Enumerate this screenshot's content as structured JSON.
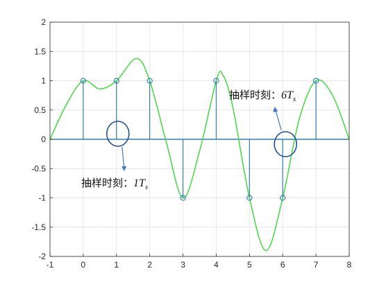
{
  "chart_data": {
    "type": "line",
    "xlim": [
      -1,
      8
    ],
    "ylim": [
      -2,
      2
    ],
    "x_ticks": [
      "-1",
      "0",
      "1",
      "2",
      "3",
      "4",
      "5",
      "6",
      "7",
      "8"
    ],
    "y_ticks": [
      "2",
      "1.5",
      "1",
      "0.5",
      "0",
      "-0.5",
      "-1",
      "-1.5",
      "-2"
    ],
    "grid": true,
    "series": [
      {
        "kind": "continuous-curve",
        "color": "#4cd94c",
        "x": [
          -1,
          -0.5,
          0,
          0.5,
          1,
          1.6,
          2,
          2.5,
          3,
          3.5,
          4,
          4.2,
          4.5,
          5,
          5.5,
          6,
          6.5,
          7,
          7.5,
          8
        ],
        "y": [
          0,
          0.6,
          1,
          0.86,
          1,
          1.38,
          1,
          -0.05,
          -1,
          -0.2,
          1,
          1.1,
          0.55,
          -1,
          -1.9,
          -1,
          0.35,
          1,
          0.75,
          0
        ]
      },
      {
        "kind": "stem",
        "color": "#2e7fa8",
        "x": [
          0,
          1,
          2,
          3,
          4,
          5,
          6,
          7
        ],
        "y": [
          1,
          1,
          1,
          -1,
          1,
          -1,
          -1,
          1
        ]
      }
    ],
    "annotations": [
      {
        "id": "sample1",
        "text_cn": "抽样时刻：",
        "text_math": "1T",
        "subscript": "s",
        "sample_x": 1
      },
      {
        "id": "sample6",
        "text_cn": "抽样时刻：",
        "text_math": "6T",
        "subscript": "s",
        "sample_x": 6
      }
    ]
  },
  "colors": {
    "axis": "#262626",
    "grid": "#e6e6e6",
    "zero_line": "#2e7fa8",
    "curve": "#4cd94c",
    "stem": "#2e7fa8",
    "circle": "#1f4e9c",
    "arrow": "#3b78c4"
  }
}
